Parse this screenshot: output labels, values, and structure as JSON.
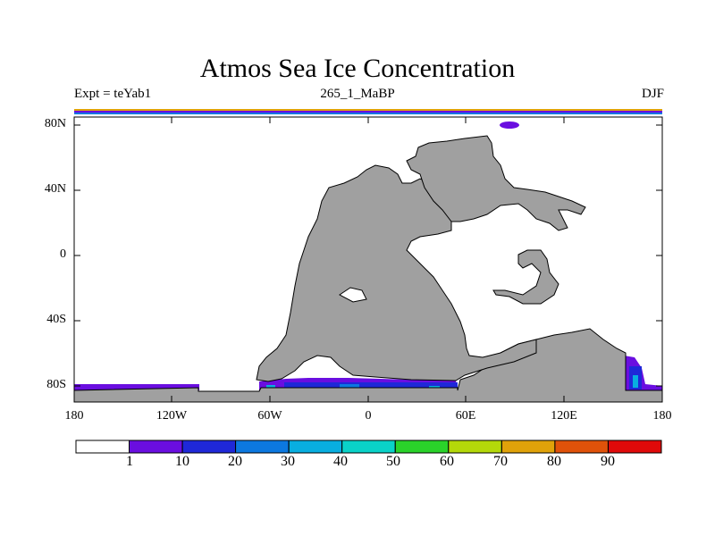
{
  "title": "Atmos Sea Ice Concentration",
  "subtitle_left": "Expt = teYab1",
  "subtitle_center": "265_1_MaBP",
  "subtitle_right": "DJF",
  "y_axis_labels": [
    "80N",
    "40N",
    "0",
    "40S",
    "80S"
  ],
  "x_axis_labels": [
    "180",
    "120W",
    "60W",
    "0",
    "60E",
    "120E",
    "180"
  ],
  "colorbar": {
    "labels": [
      "1",
      "10",
      "20",
      "30",
      "40",
      "50",
      "60",
      "70",
      "80",
      "90"
    ],
    "colors": [
      "#ffffff",
      "#6a0ee0",
      "#1f28d8",
      "#0c78e0",
      "#08aee0",
      "#0ad2c8",
      "#2ad22a",
      "#b4d80a",
      "#e0a20a",
      "#e0520a",
      "#e00a0a"
    ]
  },
  "colors": {
    "land": "#a0a0a0",
    "ocean": "#ffffff",
    "ice_low": "#6a0ee0",
    "ice_mid": "#1f28d8",
    "ice_high": "#0c78e0",
    "ice_higher": "#08aee0"
  }
}
